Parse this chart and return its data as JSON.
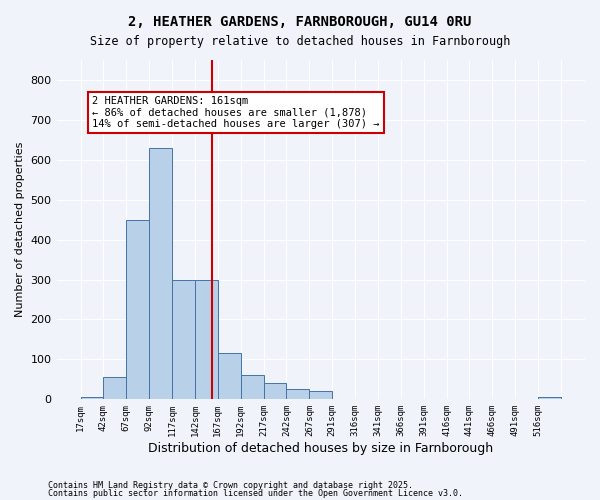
{
  "title_line1": "2, HEATHER GARDENS, FARNBOROUGH, GU14 0RU",
  "title_line2": "Size of property relative to detached houses in Farnborough",
  "xlabel": "Distribution of detached houses by size in Farnborough",
  "ylabel": "Number of detached properties",
  "bar_color": "#b8d0e8",
  "bar_edge_color": "#4472a8",
  "bins": [
    "17sqm",
    "42sqm",
    "67sqm",
    "92sqm",
    "117sqm",
    "142sqm",
    "167sqm",
    "192sqm",
    "217sqm",
    "242sqm",
    "267sqm",
    "291sqm",
    "316sqm",
    "341sqm",
    "366sqm",
    "391sqm",
    "416sqm",
    "441sqm",
    "466sqm",
    "491sqm",
    "516sqm"
  ],
  "values": [
    5,
    55,
    450,
    630,
    300,
    300,
    115,
    60,
    40,
    25,
    20,
    0,
    0,
    0,
    0,
    0,
    0,
    0,
    0,
    0,
    5
  ],
  "ylim": [
    0,
    850
  ],
  "yticks": [
    0,
    100,
    200,
    300,
    400,
    500,
    600,
    700,
    800
  ],
  "property_value": 161,
  "vline_bin_index": 5.76,
  "annotation_text": "2 HEATHER GARDENS: 161sqm\n← 86% of detached houses are smaller (1,878)\n14% of semi-detached houses are larger (307) →",
  "annotation_box_color": "#ffffff",
  "annotation_box_edge_color": "#cc0000",
  "vline_color": "#cc0000",
  "footer_line1": "Contains HM Land Registry data © Crown copyright and database right 2025.",
  "footer_line2": "Contains public sector information licensed under the Open Government Licence v3.0.",
  "background_color": "#f0f4fa",
  "grid_color": "#ffffff"
}
